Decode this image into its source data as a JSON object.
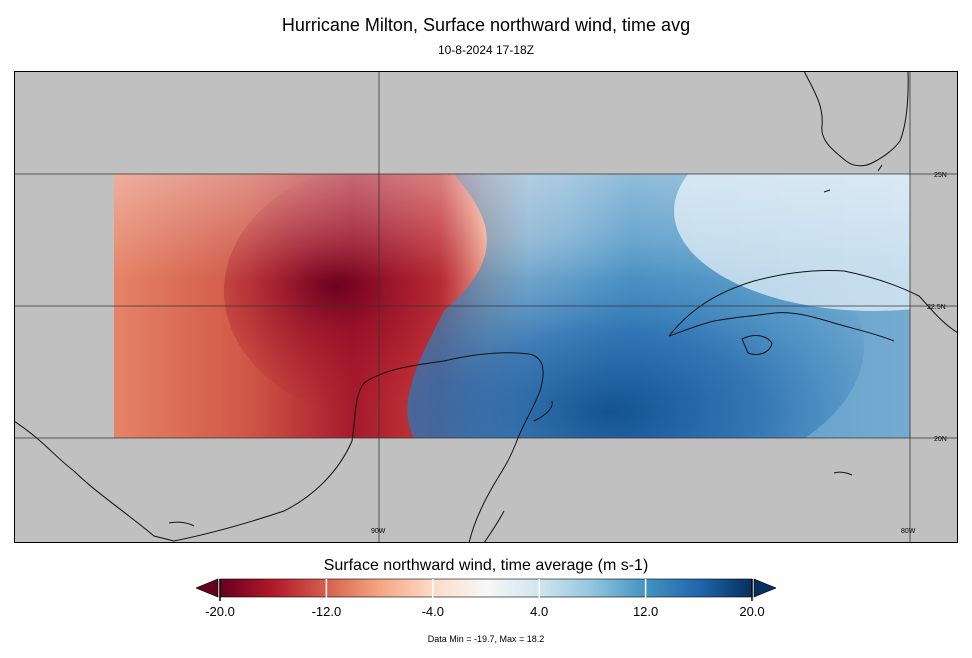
{
  "title": "Hurricane Milton, Surface northward wind, time avg",
  "subtitle": "10-8-2024 17-18Z",
  "map": {
    "background_color": "#c0c0c0",
    "lat_labels": [
      "25N",
      "22.5N",
      "20N"
    ],
    "lon_labels": [
      "90W",
      "80W"
    ],
    "data_extent": {
      "lon_min": -95,
      "lon_max": -80,
      "lat_min": 20,
      "lat_max": 25
    }
  },
  "colorbar": {
    "title": "Surface northward wind, time average (m s-1)",
    "tick_labels": [
      "-20.0",
      "-12.0",
      "-4.0",
      "4.0",
      "12.0",
      "20.0"
    ],
    "min": -20,
    "max": 20,
    "colors": [
      "#67001f",
      "#b2182b",
      "#d6604d",
      "#f4a582",
      "#fddbc7",
      "#f7f7f7",
      "#d1e5f0",
      "#92c5de",
      "#4393c3",
      "#2166ac",
      "#053061"
    ]
  },
  "data_range_text": "Data Min = -19.7, Max = 18.2"
}
